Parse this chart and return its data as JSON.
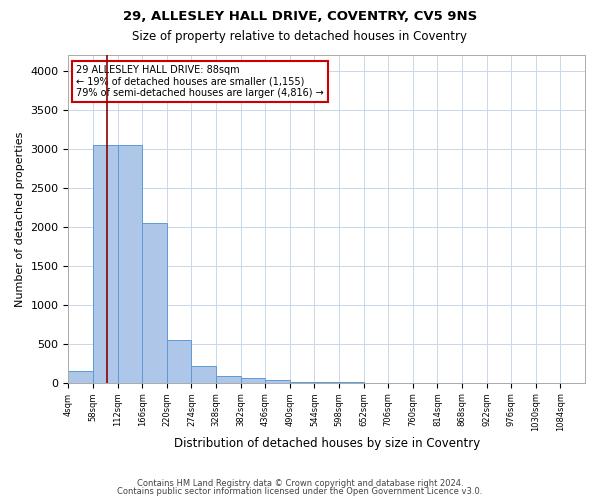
{
  "title1": "29, ALLESLEY HALL DRIVE, COVENTRY, CV5 9NS",
  "title2": "Size of property relative to detached houses in Coventry",
  "xlabel": "Distribution of detached houses by size in Coventry",
  "ylabel": "Number of detached properties",
  "footer1": "Contains HM Land Registry data © Crown copyright and database right 2024.",
  "footer2": "Contains public sector information licensed under the Open Government Licence v3.0.",
  "bin_edges": [
    4,
    58,
    112,
    166,
    220,
    274,
    328,
    382,
    436,
    490,
    544,
    598,
    652,
    706,
    760,
    814,
    868,
    922,
    976,
    1030,
    1084
  ],
  "bar_heights": [
    150,
    3050,
    3050,
    2050,
    550,
    220,
    90,
    55,
    30,
    12,
    6,
    3,
    2,
    1,
    1,
    0,
    0,
    0,
    0,
    0
  ],
  "bar_color": "#aec6e8",
  "bar_edge_color": "#5b9bd5",
  "property_size": 88,
  "annotation_title": "29 ALLESLEY HALL DRIVE: 88sqm",
  "annotation_line1": "← 19% of detached houses are smaller (1,155)",
  "annotation_line2": "79% of semi-detached houses are larger (4,816) →",
  "vline_color": "#8b0000",
  "annotation_box_color": "#cc0000",
  "ylim": [
    0,
    4200
  ],
  "yticks": [
    0,
    500,
    1000,
    1500,
    2000,
    2500,
    3000,
    3500,
    4000
  ],
  "background_color": "#ffffff",
  "grid_color": "#c8d8e8"
}
